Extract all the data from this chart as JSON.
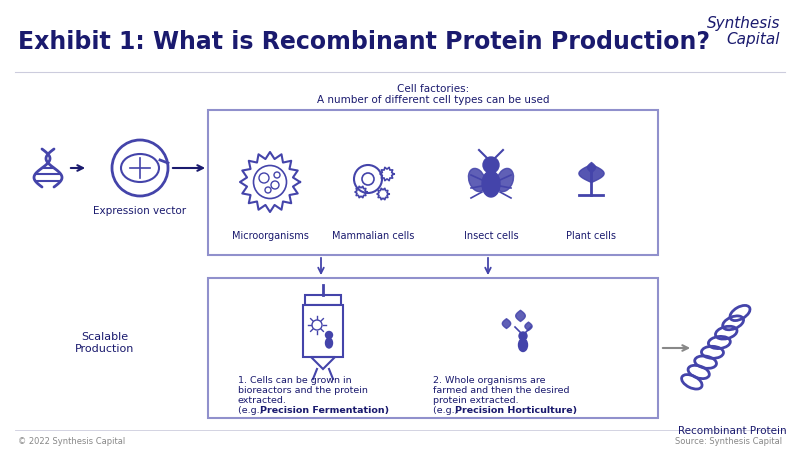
{
  "title": "Exhibit 1: What is Recombinant Protein Production?",
  "title_fontsize": 17,
  "logo_line1": "Synthesis",
  "logo_line2": "Capital",
  "logo_fontsize": 11,
  "bg_color": "#ffffff",
  "border_color": "#9090cc",
  "main_color": "#1a1a6e",
  "light_color": "#4444aa",
  "medium_color": "#6666bb",
  "arrow_color": "#888888",
  "footer_left": "© 2022 Synthesis Capital",
  "footer_right": "Source: Synthesis Capital",
  "cell_factories_title": "Cell factories:",
  "cell_factories_sub": "A number of different cell types can be used",
  "expression_vector": "Expression vector",
  "scalable_production": "Scalable\nProduction",
  "cell_types": [
    "Microorganisms",
    "Mammalian cells",
    "Insect cells",
    "Plant cells"
  ],
  "step1_line1": "1. Cells can be grown in",
  "step1_line2": "bioreactors and the protein",
  "step1_line3": "extracted.",
  "step1_line4_pre": "(e.g., ",
  "step1_bold": "Precision Fermentation",
  "step1_line4_post": ")",
  "step2_line1": "2. Whole organisms are",
  "step2_line2": "farmed and then the desired",
  "step2_line3": "protein extracted.",
  "step2_line4_pre": "(e.g., ",
  "step2_bold": "Precision Horticulture",
  "step2_line4_post": ")",
  "recombinant_protein": "Recombinant Protein",
  "hr_color": "#ccccdd",
  "separator_color": "#aaaacc"
}
